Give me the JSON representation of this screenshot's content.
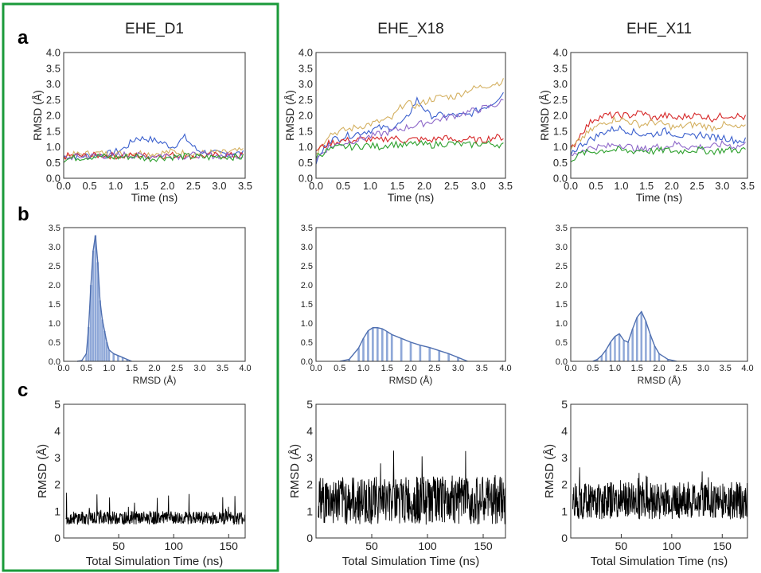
{
  "panel_letters": [
    "a",
    "b",
    "c"
  ],
  "highlight_color": "#1a9a3a",
  "series_colors": [
    "#3a5fcd",
    "#d4b060",
    "#d62728",
    "#8e68c9",
    "#2ca02c"
  ],
  "hist_color": "#8fa8d8",
  "kde_color": "#4f6fb0",
  "chart_data": [
    {
      "id": "a-D1",
      "row": "a",
      "col": 0,
      "type": "line",
      "title": "EHE_D1",
      "xlabel": "Time (ns)",
      "ylabel": "RMSD (Å)",
      "xlim": [
        0,
        3.5
      ],
      "ylim": [
        0,
        4.0
      ],
      "xticks": [
        "0.0",
        "0.5",
        "1.0",
        "1.5",
        "2.0",
        "2.5",
        "3.0",
        "3.5"
      ],
      "yticks": [
        "0.0",
        "0.5",
        "1.0",
        "1.5",
        "2.0",
        "2.5",
        "3.0",
        "3.5",
        "4.0"
      ],
      "series": [
        {
          "color": "#3a5fcd",
          "values": [
            0.68,
            0.7,
            0.72,
            0.74,
            0.8,
            0.95,
            1.28,
            1.25,
            1.15,
            1.0,
            1.3,
            0.9,
            0.8,
            0.78,
            0.8,
            0.78
          ]
        },
        {
          "color": "#d4b060",
          "values": [
            0.7,
            0.75,
            0.78,
            0.8,
            0.75,
            0.8,
            0.82,
            0.78,
            0.8,
            0.85,
            0.8,
            0.78,
            0.82,
            0.8,
            0.85,
            0.88
          ]
        },
        {
          "color": "#d62728",
          "values": [
            0.7,
            0.72,
            0.7,
            0.74,
            0.72,
            0.7,
            0.73,
            0.71,
            0.72,
            0.74,
            0.72,
            0.7,
            0.72,
            0.73,
            0.72,
            0.73
          ]
        },
        {
          "color": "#8e68c9",
          "values": [
            0.65,
            0.68,
            0.7,
            0.72,
            0.7,
            0.75,
            0.72,
            0.7,
            0.74,
            0.72,
            0.7,
            0.75,
            0.73,
            0.72,
            0.74,
            0.72
          ]
        },
        {
          "color": "#2ca02c",
          "values": [
            0.6,
            0.65,
            0.68,
            0.7,
            0.66,
            0.68,
            0.7,
            0.62,
            0.66,
            0.68,
            0.7,
            0.68,
            0.66,
            0.7,
            0.68,
            0.66
          ]
        }
      ]
    },
    {
      "id": "a-X18",
      "row": "a",
      "col": 1,
      "type": "line",
      "title": "EHE_X18",
      "xlabel": "Time (ns)",
      "ylabel": "RMSD (Å)",
      "xlim": [
        0,
        3.5
      ],
      "ylim": [
        0,
        4.0
      ],
      "xticks": [
        "0.0",
        "0.5",
        "1.0",
        "1.5",
        "2.0",
        "2.5",
        "3.0",
        "3.5"
      ],
      "yticks": [
        "0.0",
        "0.5",
        "1.0",
        "1.5",
        "2.0",
        "2.5",
        "3.0",
        "3.5",
        "4.0"
      ],
      "series": [
        {
          "color": "#3a5fcd",
          "values": [
            0.5,
            1.2,
            1.3,
            1.4,
            1.5,
            1.6,
            1.6,
            1.8,
            2.5,
            2.0,
            2.0,
            2.0,
            2.0,
            2.2,
            2.4,
            2.8
          ]
        },
        {
          "color": "#d4b060",
          "values": [
            0.8,
            1.4,
            1.5,
            1.6,
            1.7,
            1.8,
            1.9,
            2.4,
            2.3,
            2.5,
            2.6,
            2.6,
            2.8,
            2.9,
            3.0,
            3.1
          ]
        },
        {
          "color": "#d62728",
          "values": [
            0.9,
            1.1,
            1.2,
            1.2,
            1.25,
            1.2,
            1.3,
            1.2,
            1.25,
            1.2,
            1.3,
            1.2,
            1.25,
            1.2,
            1.3,
            1.3
          ]
        },
        {
          "color": "#8e68c9",
          "values": [
            0.6,
            1.0,
            1.1,
            1.2,
            1.3,
            1.4,
            1.5,
            1.6,
            1.7,
            1.8,
            1.9,
            2.0,
            2.1,
            2.2,
            2.3,
            2.5
          ]
        },
        {
          "color": "#2ca02c",
          "values": [
            0.7,
            0.9,
            1.0,
            1.0,
            1.05,
            1.0,
            1.1,
            1.05,
            1.1,
            1.05,
            1.1,
            1.1,
            1.05,
            1.1,
            1.1,
            1.05
          ]
        }
      ]
    },
    {
      "id": "a-X11",
      "row": "a",
      "col": 2,
      "type": "line",
      "title": "EHE_X11",
      "xlabel": "Time (ns)",
      "ylabel": "RMSD (Å)",
      "xlim": [
        0,
        3.5
      ],
      "ylim": [
        0,
        4.0
      ],
      "xticks": [
        "0.0",
        "0.5",
        "1.0",
        "1.5",
        "2.0",
        "2.5",
        "3.0",
        "3.5"
      ],
      "yticks": [
        "0.0",
        "0.5",
        "1.0",
        "1.5",
        "2.0",
        "2.5",
        "3.0",
        "3.5",
        "4.0"
      ],
      "series": [
        {
          "color": "#d62728",
          "values": [
            0.9,
            1.5,
            1.9,
            2.0,
            2.0,
            2.0,
            2.1,
            1.9,
            2.0,
            1.9,
            2.0,
            2.0,
            1.9,
            2.0,
            2.0,
            1.9
          ]
        },
        {
          "color": "#d4b060",
          "values": [
            0.9,
            1.3,
            1.6,
            1.8,
            1.9,
            1.8,
            1.7,
            1.8,
            1.7,
            1.6,
            1.7,
            1.7,
            1.6,
            1.7,
            1.6,
            1.6
          ]
        },
        {
          "color": "#3a5fcd",
          "values": [
            0.8,
            1.1,
            1.3,
            1.5,
            1.6,
            1.5,
            1.4,
            1.4,
            1.5,
            1.4,
            1.3,
            1.4,
            1.3,
            1.3,
            1.2,
            1.2
          ]
        },
        {
          "color": "#8e68c9",
          "values": [
            0.7,
            0.9,
            1.0,
            1.0,
            1.1,
            1.0,
            0.9,
            1.0,
            1.0,
            1.1,
            1.0,
            1.0,
            1.0,
            1.1,
            1.0,
            1.1
          ]
        },
        {
          "color": "#2ca02c",
          "values": [
            0.6,
            0.8,
            0.85,
            0.9,
            0.9,
            0.85,
            0.9,
            0.85,
            0.9,
            0.85,
            0.9,
            0.9,
            0.85,
            0.9,
            0.9,
            0.9
          ]
        }
      ]
    },
    {
      "id": "b-D1",
      "row": "b",
      "col": 0,
      "type": "bar",
      "xlabel": "RMSD (Å)",
      "ylabel": "",
      "xlim": [
        0,
        4.0
      ],
      "ylim": [
        0,
        3.5
      ],
      "xticks": [
        "0.0",
        "0.5",
        "1.0",
        "1.5",
        "2.0",
        "2.5",
        "3.0",
        "3.5",
        "4.0"
      ],
      "yticks": [
        "0.0",
        "0.5",
        "1.0",
        "1.5",
        "2.0",
        "2.5",
        "3.0",
        "3.5"
      ],
      "x": [
        0.3,
        0.4,
        0.5,
        0.55,
        0.6,
        0.65,
        0.7,
        0.75,
        0.8,
        0.85,
        0.9,
        0.95,
        1.0,
        1.1,
        1.2,
        1.3,
        1.4,
        1.5
      ],
      "values": [
        0,
        0.02,
        0.2,
        0.9,
        2.0,
        2.9,
        3.3,
        2.6,
        1.6,
        1.1,
        0.8,
        0.5,
        0.3,
        0.2,
        0.15,
        0.1,
        0.05,
        0
      ]
    },
    {
      "id": "b-X18",
      "row": "b",
      "col": 1,
      "type": "bar",
      "xlabel": "RMSD (Å)",
      "ylabel": "",
      "xlim": [
        0,
        4.0
      ],
      "ylim": [
        0,
        3.5
      ],
      "xticks": [
        "0.0",
        "0.5",
        "1.0",
        "1.5",
        "2.0",
        "2.5",
        "3.0",
        "3.5",
        "4.0"
      ],
      "yticks": [
        "0.0",
        "0.5",
        "1.0",
        "1.5",
        "2.0",
        "2.5",
        "3.0",
        "3.5"
      ],
      "x": [
        0.5,
        0.7,
        0.9,
        1.0,
        1.1,
        1.2,
        1.3,
        1.4,
        1.5,
        1.6,
        1.8,
        2.0,
        2.2,
        2.4,
        2.6,
        2.8,
        3.0,
        3.2
      ],
      "values": [
        0,
        0.05,
        0.35,
        0.6,
        0.8,
        0.88,
        0.88,
        0.85,
        0.78,
        0.7,
        0.6,
        0.5,
        0.42,
        0.36,
        0.28,
        0.2,
        0.1,
        0
      ]
    },
    {
      "id": "b-X11",
      "row": "b",
      "col": 2,
      "type": "bar",
      "xlabel": "RMSD (Å)",
      "ylabel": "",
      "xlim": [
        0,
        4.0
      ],
      "ylim": [
        0,
        3.5
      ],
      "xticks": [
        "0.0",
        "0.5",
        "1.0",
        "1.5",
        "2.0",
        "2.5",
        "3.0",
        "3.5",
        "4.0"
      ],
      "yticks": [
        "0.0",
        "0.5",
        "1.0",
        "1.5",
        "2.0",
        "2.5",
        "3.0",
        "3.5"
      ],
      "x": [
        0.5,
        0.6,
        0.7,
        0.8,
        0.9,
        1.0,
        1.1,
        1.2,
        1.3,
        1.4,
        1.5,
        1.6,
        1.7,
        1.8,
        1.9,
        2.0,
        2.2,
        2.4
      ],
      "values": [
        0,
        0.05,
        0.15,
        0.3,
        0.5,
        0.65,
        0.72,
        0.55,
        0.5,
        0.85,
        1.15,
        1.3,
        1.05,
        0.7,
        0.4,
        0.2,
        0.05,
        0
      ]
    },
    {
      "id": "c-D1",
      "row": "c",
      "col": 0,
      "type": "line",
      "xlabel": "Total Simulation Time (ns)",
      "ylabel": "RMSD (Å)",
      "xlim": [
        0,
        165
      ],
      "ylim": [
        0,
        5
      ],
      "xticks": [
        "50",
        "100",
        "150"
      ],
      "xtick_values": [
        50,
        100,
        150
      ],
      "yticks": [
        "0",
        "1",
        "2",
        "3",
        "4",
        "5"
      ],
      "base": 0.75,
      "noise": 0.25,
      "spike": 1.7
    },
    {
      "id": "c-X18",
      "row": "c",
      "col": 1,
      "type": "line",
      "xlabel": "Total Simulation Time (ns)",
      "ylabel": "RMSD (Å)",
      "xlim": [
        0,
        170
      ],
      "ylim": [
        0,
        5
      ],
      "xticks": [
        "50",
        "100",
        "150"
      ],
      "xtick_values": [
        50,
        100,
        150
      ],
      "yticks": [
        "0",
        "1",
        "2",
        "3",
        "4",
        "5"
      ],
      "base": 1.4,
      "noise": 0.9,
      "spike": 3.5
    },
    {
      "id": "c-X11",
      "row": "c",
      "col": 2,
      "type": "line",
      "xlabel": "Total Simulation Time (ns)",
      "ylabel": "RMSD (Å)",
      "xlim": [
        0,
        175
      ],
      "ylim": [
        0,
        5
      ],
      "xticks": [
        "50",
        "100",
        "150"
      ],
      "xtick_values": [
        50,
        100,
        150
      ],
      "yticks": [
        "0",
        "1",
        "2",
        "3",
        "4",
        "5"
      ],
      "base": 1.4,
      "noise": 0.7,
      "spike": 2.7
    }
  ]
}
